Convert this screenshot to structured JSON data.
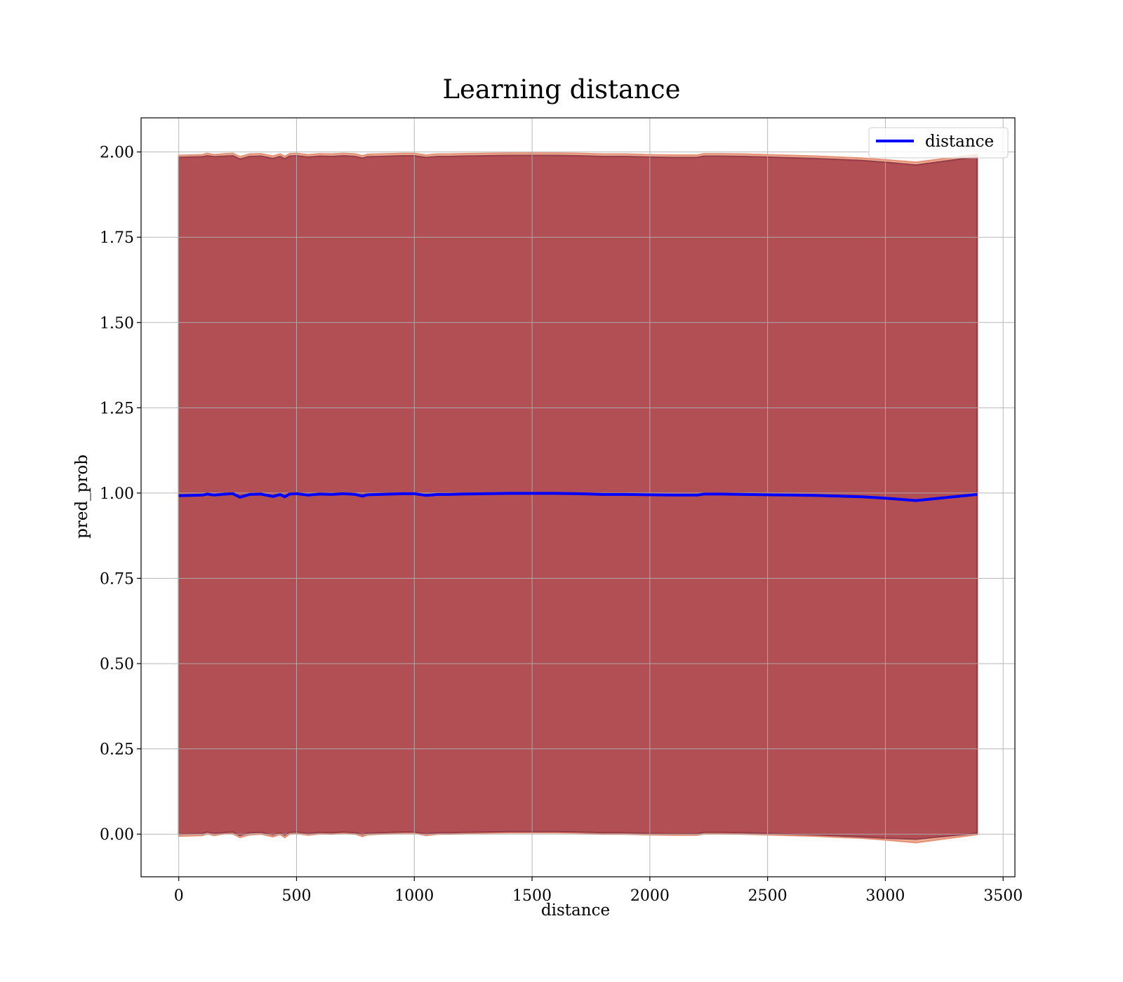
{
  "chart_data": {
    "type": "line",
    "title": "Learning distance",
    "xlabel": "distance",
    "ylabel": "pred_prob",
    "xlim": [
      -160,
      3550
    ],
    "ylim": [
      -0.125,
      2.1
    ],
    "x_ticks": [
      0,
      500,
      1000,
      1500,
      2000,
      2500,
      3000,
      3500
    ],
    "x_tick_labels": [
      "0",
      "500",
      "1000",
      "1500",
      "2000",
      "2500",
      "3000",
      "3500"
    ],
    "y_ticks": [
      0.0,
      0.25,
      0.5,
      0.75,
      1.0,
      1.25,
      1.5,
      1.75,
      2.0
    ],
    "y_tick_labels": [
      "0.00",
      "0.25",
      "0.50",
      "0.75",
      "1.00",
      "1.25",
      "1.50",
      "1.75",
      "2.00"
    ],
    "grid": true,
    "legend_position": "top-right",
    "series": [
      {
        "name": "distance",
        "color": "#0000ff",
        "x": [
          0,
          50,
          100,
          120,
          150,
          200,
          230,
          260,
          300,
          350,
          400,
          430,
          450,
          470,
          500,
          550,
          600,
          650,
          700,
          750,
          780,
          800,
          850,
          900,
          950,
          1000,
          1050,
          1100,
          1150,
          1200,
          1300,
          1400,
          1500,
          1600,
          1700,
          1750,
          1800,
          1900,
          2000,
          2100,
          2200,
          2230,
          2300,
          2400,
          2500,
          2600,
          2700,
          2800,
          2900,
          3000,
          3130,
          3390
        ],
        "y": [
          0.992,
          0.993,
          0.994,
          0.997,
          0.994,
          0.997,
          0.998,
          0.988,
          0.996,
          0.997,
          0.99,
          0.996,
          0.989,
          0.997,
          0.998,
          0.994,
          0.997,
          0.996,
          0.998,
          0.996,
          0.991,
          0.995,
          0.996,
          0.997,
          0.998,
          0.998,
          0.993,
          0.996,
          0.996,
          0.997,
          0.998,
          0.999,
          0.999,
          0.999,
          0.998,
          0.997,
          0.996,
          0.996,
          0.995,
          0.994,
          0.994,
          0.997,
          0.997,
          0.996,
          0.995,
          0.994,
          0.993,
          0.991,
          0.989,
          0.985,
          0.978,
          0.996
        ]
      }
    ],
    "bands": [
      {
        "fill_color": "#e07040",
        "edge_color": "#e08060",
        "x": [
          0,
          50,
          100,
          120,
          150,
          200,
          230,
          260,
          300,
          350,
          400,
          430,
          450,
          470,
          500,
          550,
          600,
          650,
          700,
          750,
          780,
          800,
          850,
          900,
          950,
          1000,
          1050,
          1100,
          1150,
          1200,
          1300,
          1400,
          1500,
          1600,
          1700,
          1750,
          1800,
          1900,
          2000,
          2100,
          2200,
          2230,
          2300,
          2400,
          2500,
          2600,
          2700,
          2800,
          2900,
          3000,
          3130,
          3390
        ],
        "lower": [
          -0.006,
          -0.005,
          -0.004,
          0.001,
          -0.004,
          0.002,
          0.001,
          -0.01,
          -0.002,
          0.0,
          -0.008,
          -0.001,
          -0.01,
          0.0,
          0.002,
          -0.003,
          0.001,
          0.0,
          0.003,
          0.0,
          -0.007,
          -0.002,
          0.0,
          0.001,
          0.003,
          0.003,
          -0.004,
          0.0,
          0.0,
          0.001,
          0.003,
          0.004,
          0.004,
          0.004,
          0.003,
          0.001,
          0.0,
          0.0,
          -0.002,
          -0.003,
          -0.003,
          0.001,
          0.001,
          0.0,
          -0.002,
          -0.004,
          -0.006,
          -0.009,
          -0.012,
          -0.017,
          -0.025,
          -0.001
        ],
        "upper": [
          1.99,
          1.991,
          1.992,
          1.996,
          1.992,
          1.995,
          1.996,
          1.986,
          1.994,
          1.995,
          1.988,
          1.994,
          1.987,
          1.995,
          1.996,
          1.992,
          1.995,
          1.994,
          1.996,
          1.994,
          1.989,
          1.993,
          1.994,
          1.995,
          1.996,
          1.996,
          1.991,
          1.994,
          1.994,
          1.995,
          1.996,
          1.997,
          1.997,
          1.997,
          1.996,
          1.995,
          1.994,
          1.994,
          1.992,
          1.991,
          1.991,
          1.995,
          1.995,
          1.994,
          1.992,
          1.99,
          1.988,
          1.985,
          1.982,
          1.977,
          1.97,
          1.993
        ]
      },
      {
        "fill_color": "#800020",
        "edge_color": "#8a3040",
        "x": [
          0,
          50,
          100,
          120,
          150,
          200,
          230,
          260,
          300,
          350,
          400,
          430,
          450,
          470,
          500,
          550,
          600,
          650,
          700,
          750,
          780,
          800,
          850,
          900,
          950,
          1000,
          1050,
          1100,
          1150,
          1200,
          1300,
          1400,
          1500,
          1600,
          1700,
          1750,
          1800,
          1900,
          2000,
          2100,
          2200,
          2230,
          2300,
          2400,
          2500,
          2600,
          2700,
          2800,
          2900,
          3000,
          3130,
          3390
        ],
        "lower": [
          0.0,
          0.001,
          0.002,
          0.006,
          0.002,
          0.005,
          0.006,
          -0.004,
          0.004,
          0.005,
          -0.002,
          0.004,
          -0.003,
          0.005,
          0.006,
          0.002,
          0.005,
          0.004,
          0.006,
          0.004,
          -0.001,
          0.003,
          0.004,
          0.005,
          0.006,
          0.006,
          0.001,
          0.004,
          0.004,
          0.005,
          0.006,
          0.007,
          0.007,
          0.007,
          0.006,
          0.005,
          0.004,
          0.004,
          0.002,
          0.001,
          0.001,
          0.005,
          0.005,
          0.004,
          0.002,
          0.0,
          -0.002,
          -0.005,
          -0.008,
          -0.012,
          -0.015,
          0.003
        ],
        "upper": [
          1.984,
          1.985,
          1.986,
          1.989,
          1.986,
          1.988,
          1.989,
          1.979,
          1.987,
          1.988,
          1.981,
          1.987,
          1.98,
          1.988,
          1.989,
          1.985,
          1.988,
          1.987,
          1.989,
          1.987,
          1.982,
          1.986,
          1.987,
          1.988,
          1.989,
          1.989,
          1.984,
          1.987,
          1.987,
          1.988,
          1.989,
          1.99,
          1.99,
          1.99,
          1.989,
          1.988,
          1.987,
          1.987,
          1.985,
          1.984,
          1.984,
          1.988,
          1.988,
          1.987,
          1.985,
          1.983,
          1.981,
          1.978,
          1.975,
          1.97,
          1.962,
          1.986
        ]
      }
    ]
  }
}
